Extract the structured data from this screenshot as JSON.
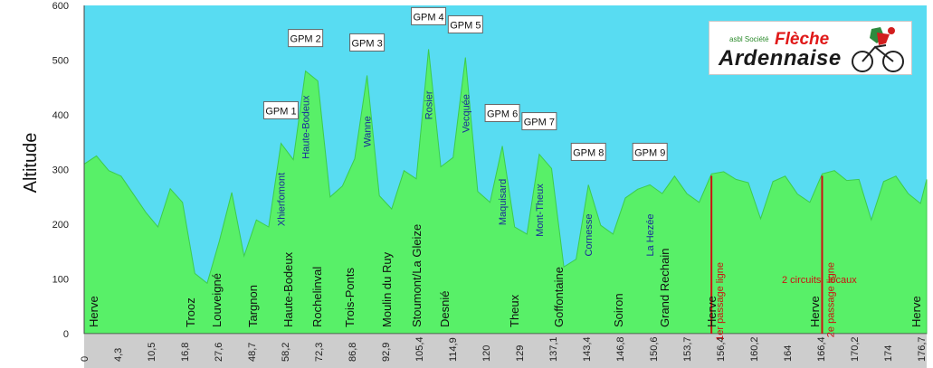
{
  "chart_data": {
    "type": "area",
    "title": "",
    "ylabel": "Altitude",
    "xlabel": "",
    "ylim": [
      0,
      600
    ],
    "yticks": [
      "0",
      "100",
      "200",
      "300",
      "400",
      "500",
      "600"
    ],
    "xticks": [
      "0",
      "4,3",
      "10,5",
      "16,8",
      "27,6",
      "48,7",
      "58,2",
      "72,3",
      "86,8",
      "92,9",
      "105,4",
      "114,9",
      "120",
      "129",
      "137,1",
      "143,4",
      "146,8",
      "150,6",
      "153,7",
      "156,4",
      "160,2",
      "164",
      "166,4",
      "170,2",
      "174",
      "176,7"
    ],
    "grid": false,
    "colors": {
      "sky": "#58dcf2",
      "terrain": "#58f068",
      "terrain_edge": "#3ccc4c",
      "line_marker": "#cc1111",
      "climb_label": "#1a2a9a",
      "town_label": "#111111",
      "xaxis_band": "#cdcdcd"
    },
    "series": [
      {
        "points": [
          [
            0,
            310
          ],
          [
            2,
            325
          ],
          [
            4,
            298
          ],
          [
            6,
            288
          ],
          [
            8,
            255
          ],
          [
            10,
            222
          ],
          [
            12,
            195
          ],
          [
            14,
            265
          ],
          [
            16,
            240
          ],
          [
            18,
            110
          ],
          [
            20,
            92
          ],
          [
            22,
            170
          ],
          [
            24,
            258
          ],
          [
            26,
            142
          ],
          [
            28,
            208
          ],
          [
            30,
            195
          ],
          [
            32,
            348
          ],
          [
            34,
            318
          ],
          [
            36,
            480
          ],
          [
            38,
            462
          ],
          [
            40,
            250
          ],
          [
            42,
            270
          ],
          [
            44,
            320
          ],
          [
            46,
            472
          ],
          [
            48,
            252
          ],
          [
            50,
            228
          ],
          [
            52,
            298
          ],
          [
            54,
            283
          ],
          [
            56,
            520
          ],
          [
            58,
            305
          ],
          [
            60,
            322
          ],
          [
            62,
            505
          ],
          [
            64,
            260
          ],
          [
            66,
            240
          ],
          [
            68,
            343
          ],
          [
            70,
            195
          ],
          [
            72,
            182
          ],
          [
            74,
            328
          ],
          [
            76,
            302
          ],
          [
            78,
            122
          ],
          [
            80,
            136
          ],
          [
            82,
            272
          ],
          [
            84,
            198
          ],
          [
            86,
            182
          ],
          [
            88,
            248
          ],
          [
            90,
            264
          ],
          [
            92,
            272
          ],
          [
            94,
            256
          ],
          [
            96,
            288
          ],
          [
            98,
            256
          ],
          [
            100,
            240
          ],
          [
            102,
            292
          ],
          [
            104,
            296
          ],
          [
            106,
            282
          ],
          [
            108,
            276
          ],
          [
            110,
            210
          ],
          [
            112,
            278
          ],
          [
            114,
            288
          ],
          [
            116,
            255
          ],
          [
            118,
            240
          ],
          [
            120,
            292
          ],
          [
            122,
            298
          ],
          [
            124,
            280
          ],
          [
            126,
            282
          ],
          [
            128,
            208
          ],
          [
            130,
            278
          ],
          [
            132,
            288
          ],
          [
            134,
            256
          ],
          [
            136,
            238
          ],
          [
            137,
            282
          ]
        ]
      }
    ],
    "x_range": [
      0,
      137
    ],
    "climbs": [
      {
        "gpm": "GPM 1",
        "name": "Xhierfomont",
        "x": 32
      },
      {
        "gpm": "GPM 2",
        "name": "Haute-Bodeux",
        "x": 36
      },
      {
        "gpm": "GPM 3",
        "name": "Wanne",
        "x": 46
      },
      {
        "gpm": "GPM 4",
        "name": "Rosier",
        "x": 56
      },
      {
        "gpm": "GPM 5",
        "name": "Vecquée",
        "x": 62
      },
      {
        "gpm": "GPM 6",
        "name": "Maquisard",
        "x": 68
      },
      {
        "gpm": "GPM 7",
        "name": "Mont-Theux",
        "x": 74
      },
      {
        "gpm": "GPM 8",
        "name": "Cornesse",
        "x": 82
      },
      {
        "gpm": "GPM 9",
        "name": "La Hezée",
        "x": 92
      }
    ],
    "towns": [
      "Herve",
      "Trooz",
      "Louveigné",
      "Targnon",
      "Haute-Bodeux",
      "Rochelinval",
      "Trois-Ponts",
      "Moulin du Ruy",
      "Stoumont/La Gleize",
      "Desnié",
      "Theux",
      "Goffontaine",
      "Soiron",
      "Grand Rechain",
      "Herve",
      "Herve",
      "Herve"
    ],
    "markers": [
      {
        "label": "1er passage ligne",
        "x": 102
      },
      {
        "label": "2e passage ligne",
        "x": 120
      }
    ],
    "annotations": [
      "2 circuits",
      "locaux"
    ]
  },
  "logo": {
    "asbl": "asbl Société",
    "fleche": "Flèche",
    "ardennaise": "Ardennaise"
  }
}
